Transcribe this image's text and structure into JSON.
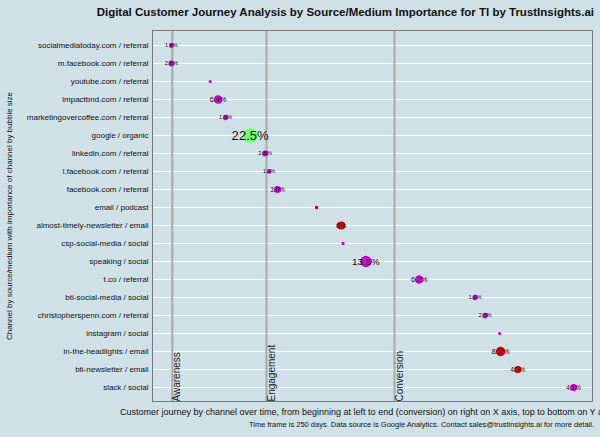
{
  "chart_data": {
    "type": "bubble",
    "title": "Digital Customer Journey Analysis by Source/Medium Importance for TI by TrustInsights.ai",
    "y_label": "Channel by source/medium with importance of channel by bubble size",
    "x_label": "Customer journey by channel over time, from beginning at left to end (conversion) on right on X axis, top to bottom on Y axis",
    "caption": "Time frame is 250 days. Data source is Google Analytics. Contact sales@trustinsights.ai for more detail.",
    "categories": [
      "socialmediatoday.com / referral",
      "m.facebook.com / referral",
      "youtube.com / referral",
      "impactbnd.com / referral",
      "marketingovercoffee.com / referral",
      "google / organic",
      "linkedin.com / referral",
      "l.facebook.com / referral",
      "facebook.com / referral",
      "email / podcast",
      "almost-timely-newsletter / email",
      "csp-social-media / social",
      "speaking / social",
      "t.co / referral",
      "bti-social-media / social",
      "christopherspenn.com / referral",
      "instagram / social",
      "in-the-headlights / email",
      "bti-newsletter / email",
      "slack / social"
    ],
    "x": [
      4.3,
      4.3,
      13.1,
      14.9,
      16.6,
      22.2,
      25.6,
      26.5,
      28.4,
      37.3,
      42.9,
      43.3,
      48.5,
      60.6,
      73.3,
      75.6,
      78.9,
      79.1,
      83.0,
      95.7
    ],
    "values": [
      1.6,
      2.6,
      0.4,
      6.4,
      1.9,
      22.5,
      2.8,
      1.3,
      3.9,
      0.5,
      6,
      0.5,
      13.5,
      6.2,
      1.9,
      2.3,
      0.4,
      8.2,
      4.3,
      4.1
    ],
    "value_labels": [
      "1.6%",
      "2.6%",
      null,
      "6.4%",
      "1.9%",
      "22.5%",
      "2.8%",
      "1.3%",
      "3.9%",
      null,
      "6%",
      null,
      "13.5%",
      "6.2%",
      "1.9%",
      "2.3%",
      null,
      "8.2%",
      "4.3%",
      "4.1%"
    ],
    "colors": [
      "#cc00cc",
      "#cc00cc",
      "#cc00cc",
      "#cc00cc",
      "#cc00cc",
      "#66ff66",
      "#cc00cc",
      "#cc00cc",
      "#cc00cc",
      "#cc0000",
      "#cc0000",
      "#cc00cc",
      "#cc00cc",
      "#cc00cc",
      "#cc00cc",
      "#cc00cc",
      "#cc00cc",
      "#cc0000",
      "#cc0000",
      "#cc00cc"
    ],
    "stages": [
      {
        "label": "Awareness",
        "x": 4.5
      },
      {
        "label": "Engagement",
        "x": 25.9
      },
      {
        "label": "Conversion",
        "x": 55.0
      }
    ],
    "xlim": [
      0,
      100
    ],
    "tick_labels": "y",
    "grid": true,
    "data_labels": true
  }
}
